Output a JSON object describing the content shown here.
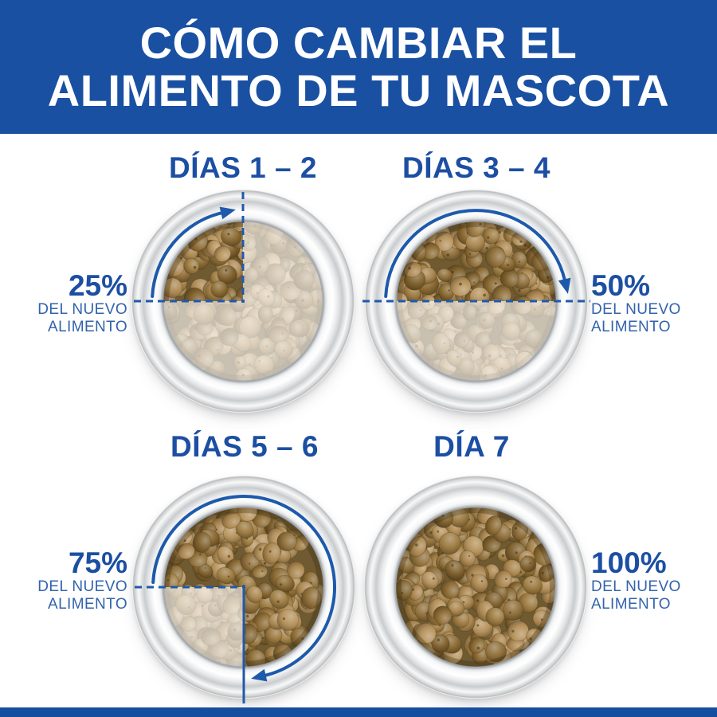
{
  "header": {
    "line1": "CÓMO CAMBIAR EL",
    "line2": "ALIMENTO DE TU MASCOTA"
  },
  "panels": [
    {
      "title": "DÍAS 1 – 2",
      "pct": 25,
      "pct_label": "25%",
      "sub_line1": "DEL NUEVO",
      "sub_line2": "ALIMENTO",
      "label_side": "left"
    },
    {
      "title": "DÍAS 3 – 4",
      "pct": 50,
      "pct_label": "50%",
      "sub_line1": "DEL NUEVO",
      "sub_line2": "ALIMENTO",
      "label_side": "right"
    },
    {
      "title": "DÍAS 5 – 6",
      "pct": 75,
      "pct_label": "75%",
      "sub_line1": "DEL NUEVO",
      "sub_line2": "ALIMENTO",
      "label_side": "left"
    },
    {
      "title": "DÍA 7",
      "pct": 100,
      "pct_label": "100%",
      "sub_line1": "DEL NUEVO",
      "sub_line2": "ALIMENTO",
      "label_side": "right"
    }
  ],
  "colors": {
    "banner_bg": "#1950a2",
    "footer_bg": "#164e9f",
    "banner_text": "#ffffff",
    "panel_title": "#1c4fa3",
    "pct_text": "#1c4fa3",
    "sub_text": "#3263ab",
    "guide": "#2059ac",
    "arc": "#1e5aab",
    "kibble_palette": [
      "#9c7b41",
      "#8b6a33",
      "#ab8750",
      "#7f612e",
      "#b5925c",
      "#8f6f3a"
    ],
    "kibble_gap": "#6f5a31",
    "fade_overlay": "rgba(255,255,255,0.62)"
  }
}
